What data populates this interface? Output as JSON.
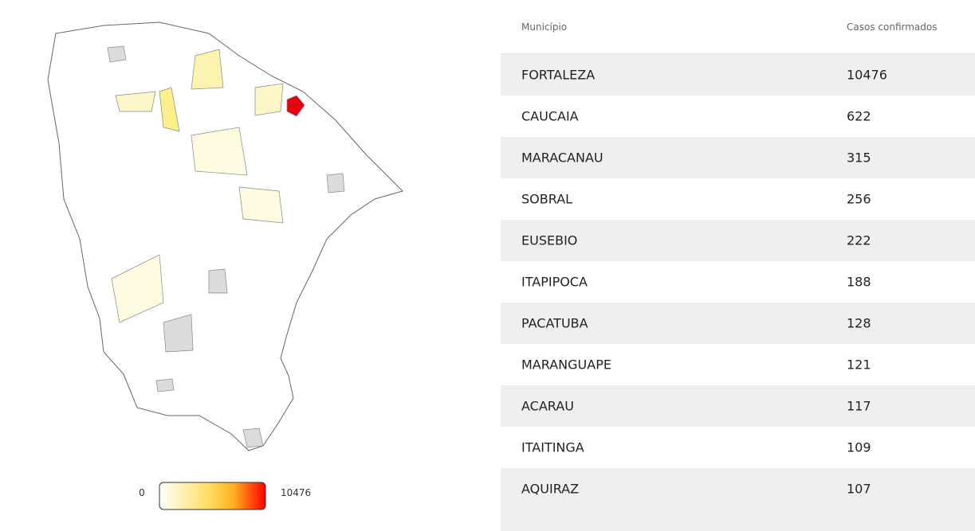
{
  "legend": {
    "min": 0,
    "max": 10476
  },
  "table": {
    "headers": [
      "Município",
      "Casos confirmados"
    ],
    "rows": [
      [
        "FORTALEZA",
        10476
      ],
      [
        "CAUCAIA",
        622
      ],
      [
        "MARACANAU",
        315
      ],
      [
        "SOBRAL",
        256
      ],
      [
        "EUSEBIO",
        222
      ],
      [
        "ITAPIPOCA",
        188
      ],
      [
        "PACATUBA",
        128
      ],
      [
        "MARANGUAPE",
        121
      ],
      [
        "ACARAU",
        117
      ],
      [
        "ITAITINGA",
        109
      ],
      [
        "AQUIRAZ",
        107
      ]
    ]
  }
}
